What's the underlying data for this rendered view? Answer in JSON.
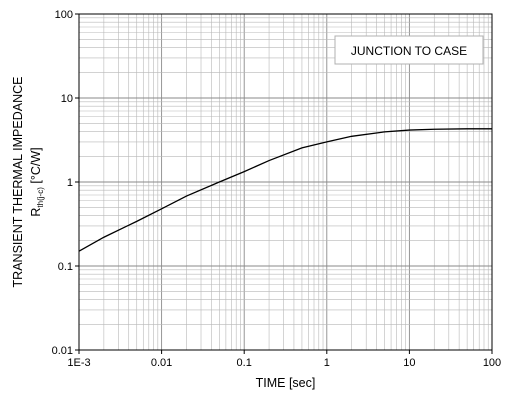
{
  "chart_data": {
    "type": "line",
    "x_scale": "log",
    "y_scale": "log",
    "xlim": [
      0.001,
      100
    ],
    "ylim": [
      0.01,
      100
    ],
    "grid": true,
    "xlabel": "TIME [sec]",
    "ylabel_line1": "TRANSIENT THERMAL IMPEDANCE",
    "ylabel_line2_main": "R",
    "ylabel_line2_sub": "th(j-c)",
    "ylabel_line2_unit": " [°C/W]",
    "x_ticks": [
      {
        "value": 0.001,
        "label": "1E-3"
      },
      {
        "value": 0.01,
        "label": "0.01"
      },
      {
        "value": 0.1,
        "label": "0.1"
      },
      {
        "value": 1,
        "label": "1"
      },
      {
        "value": 10,
        "label": "10"
      },
      {
        "value": 100,
        "label": "100"
      }
    ],
    "y_ticks": [
      {
        "value": 0.01,
        "label": "0.01"
      },
      {
        "value": 0.1,
        "label": "0.1"
      },
      {
        "value": 1,
        "label": "1"
      },
      {
        "value": 10,
        "label": "10"
      },
      {
        "value": 100,
        "label": "100"
      }
    ],
    "legend": {
      "text": "JUNCTION TO CASE",
      "placement": "top-right"
    },
    "series": [
      {
        "color": "#000000",
        "points": [
          [
            0.001,
            0.15
          ],
          [
            0.002,
            0.22
          ],
          [
            0.005,
            0.34
          ],
          [
            0.01,
            0.48
          ],
          [
            0.02,
            0.68
          ],
          [
            0.05,
            1.0
          ],
          [
            0.1,
            1.33
          ],
          [
            0.2,
            1.8
          ],
          [
            0.5,
            2.55
          ],
          [
            1,
            3.0
          ],
          [
            2,
            3.5
          ],
          [
            5,
            3.95
          ],
          [
            10,
            4.15
          ],
          [
            20,
            4.25
          ],
          [
            50,
            4.3
          ],
          [
            100,
            4.3
          ]
        ]
      }
    ]
  }
}
